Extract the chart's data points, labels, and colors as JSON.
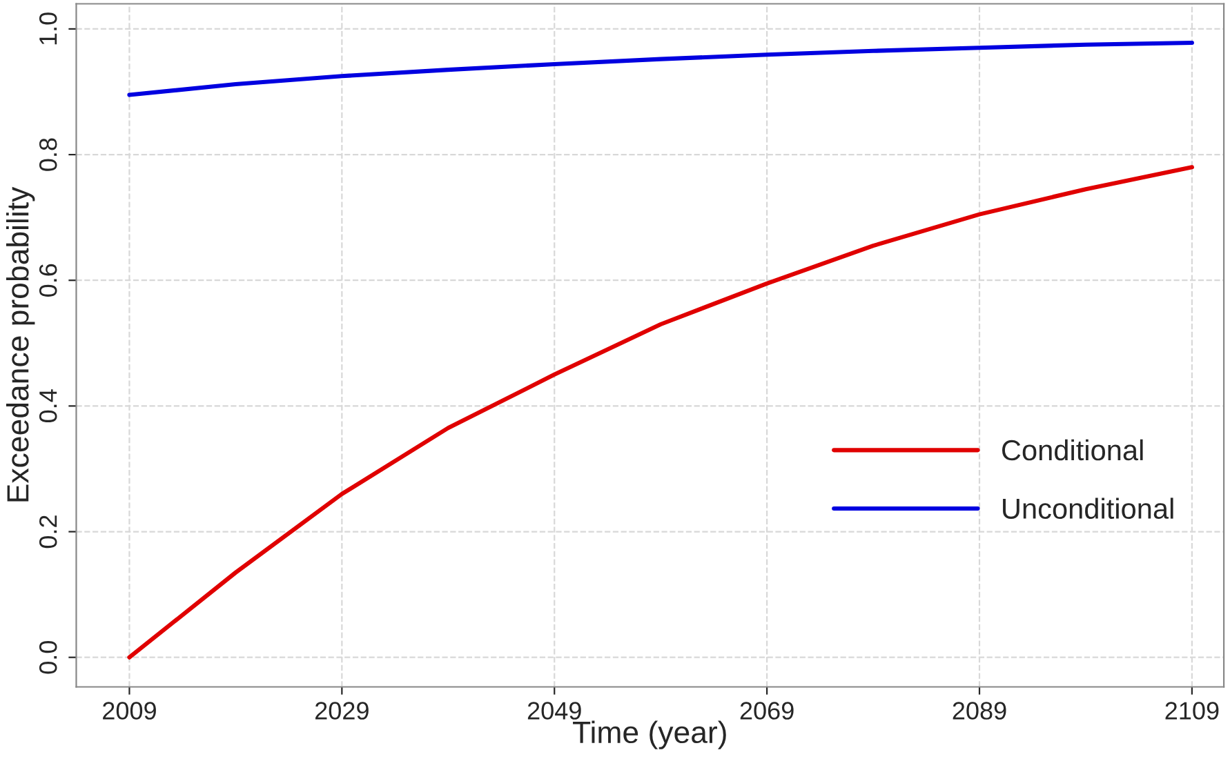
{
  "chart_data": {
    "type": "line",
    "xlabel": "Time (year)",
    "ylabel": "Exceedance probability",
    "x": [
      2009,
      2019,
      2029,
      2039,
      2049,
      2059,
      2069,
      2079,
      2089,
      2099,
      2109
    ],
    "series": [
      {
        "name": "Conditional",
        "color": "#e00000",
        "values": [
          0.0,
          0.135,
          0.26,
          0.365,
          0.45,
          0.53,
          0.595,
          0.655,
          0.705,
          0.745,
          0.78
        ]
      },
      {
        "name": "Unconditional",
        "color": "#0000e0",
        "values": [
          0.895,
          0.912,
          0.925,
          0.935,
          0.944,
          0.952,
          0.959,
          0.965,
          0.97,
          0.975,
          0.978
        ]
      }
    ],
    "xlim": [
      2004,
      2112
    ],
    "ylim": [
      -0.047,
      1.04
    ],
    "xticks": [
      2009,
      2029,
      2049,
      2069,
      2089,
      2109
    ],
    "yticks": [
      {
        "value": 0.0,
        "label": "0.0"
      },
      0.2,
      0.4,
      0.6,
      0.8,
      {
        "value": 1.0,
        "label": "1.0"
      }
    ],
    "grid": true,
    "legend": "right",
    "line_style": "solid",
    "marker": "none"
  }
}
